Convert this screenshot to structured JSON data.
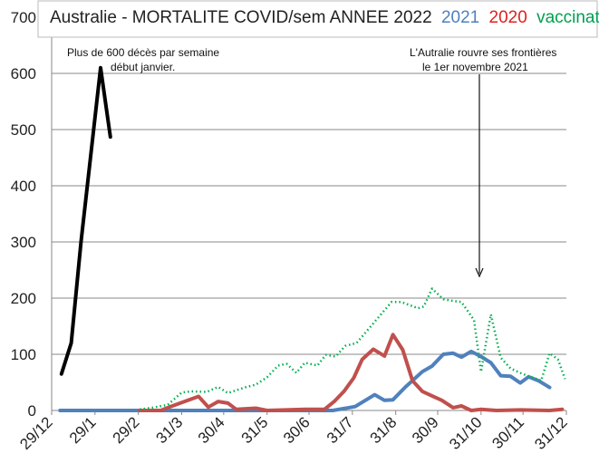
{
  "chart_data": {
    "type": "line",
    "title": {
      "main": "Australie - MORTALITE COVID/sem ANNEE 2022",
      "legend_2021": "2021",
      "legend_2020": "2020",
      "legend_vaccination": "vaccination"
    },
    "colors": {
      "y2022": "#000000",
      "y2021": "#4f81bd",
      "y2020": "#c0504d",
      "vaccination": "#00b050"
    },
    "xlabel": "",
    "ylabel": "",
    "x_unit": "days since 29/12",
    "xlim": [
      0,
      368
    ],
    "ylim": [
      0,
      700
    ],
    "yticks": [
      0,
      100,
      200,
      300,
      400,
      500,
      600,
      700
    ],
    "xticks": [
      {
        "day": 0,
        "label": "29/12"
      },
      {
        "day": 31,
        "label": "29/1"
      },
      {
        "day": 62,
        "label": "29/2"
      },
      {
        "day": 93,
        "label": "31/3"
      },
      {
        "day": 123,
        "label": "30/4"
      },
      {
        "day": 154,
        "label": "31/5"
      },
      {
        "day": 184,
        "label": "30/6"
      },
      {
        "day": 215,
        "label": "31/7"
      },
      {
        "day": 246,
        "label": "31/8"
      },
      {
        "day": 276,
        "label": "30/9"
      },
      {
        "day": 307,
        "label": "31/10"
      },
      {
        "day": 337,
        "label": "30/11"
      },
      {
        "day": 368,
        "label": "31/12"
      }
    ],
    "grid": true,
    "series": [
      {
        "name": "2022",
        "key": "y2022",
        "style": "solid-thick",
        "points": [
          [
            7,
            65
          ],
          [
            14,
            120
          ],
          [
            21,
            300
          ],
          [
            35,
            610
          ],
          [
            42,
            487
          ]
        ]
      },
      {
        "name": "2021",
        "key": "y2021",
        "style": "solid",
        "points": [
          [
            6,
            0
          ],
          [
            201,
            0
          ],
          [
            217,
            7
          ],
          [
            231,
            28
          ],
          [
            238,
            18
          ],
          [
            244,
            19
          ],
          [
            253,
            42
          ],
          [
            265,
            69
          ],
          [
            272,
            79
          ],
          [
            280,
            100
          ],
          [
            287,
            102
          ],
          [
            293,
            95
          ],
          [
            300,
            105
          ],
          [
            307,
            96
          ],
          [
            314,
            85
          ],
          [
            321,
            62
          ],
          [
            328,
            61
          ],
          [
            335,
            49
          ],
          [
            341,
            60
          ],
          [
            348,
            53
          ],
          [
            356,
            41
          ]
        ]
      },
      {
        "name": "2020",
        "key": "y2020",
        "style": "solid",
        "points": [
          [
            63,
            0
          ],
          [
            78,
            0
          ],
          [
            85,
            7
          ],
          [
            93,
            14
          ],
          [
            105,
            25
          ],
          [
            112,
            6
          ],
          [
            119,
            16
          ],
          [
            126,
            13
          ],
          [
            132,
            2
          ],
          [
            146,
            4
          ],
          [
            154,
            0
          ],
          [
            181,
            2
          ],
          [
            195,
            2
          ],
          [
            202,
            16
          ],
          [
            209,
            34
          ],
          [
            216,
            58
          ],
          [
            222,
            91
          ],
          [
            230,
            109
          ],
          [
            238,
            97
          ],
          [
            244,
            135
          ],
          [
            251,
            108
          ],
          [
            258,
            53
          ],
          [
            265,
            34
          ],
          [
            272,
            26
          ],
          [
            279,
            18
          ],
          [
            287,
            5
          ],
          [
            293,
            8
          ],
          [
            300,
            0
          ],
          [
            307,
            2
          ],
          [
            318,
            0
          ],
          [
            335,
            1
          ],
          [
            356,
            0
          ],
          [
            365,
            2
          ]
        ]
      },
      {
        "name": "vaccination",
        "key": "vaccination",
        "style": "dotted",
        "points": [
          [
            63,
            2
          ],
          [
            72,
            5
          ],
          [
            83,
            10
          ],
          [
            93,
            32
          ],
          [
            100,
            34
          ],
          [
            111,
            33
          ],
          [
            119,
            42
          ],
          [
            126,
            31
          ],
          [
            138,
            41
          ],
          [
            146,
            46
          ],
          [
            154,
            59
          ],
          [
            162,
            80
          ],
          [
            168,
            83
          ],
          [
            175,
            67
          ],
          [
            181,
            85
          ],
          [
            190,
            80
          ],
          [
            196,
            99
          ],
          [
            203,
            96
          ],
          [
            210,
            115
          ],
          [
            218,
            120
          ],
          [
            231,
            158
          ],
          [
            243,
            193
          ],
          [
            250,
            193
          ],
          [
            262,
            182
          ],
          [
            266,
            185
          ],
          [
            272,
            217
          ],
          [
            280,
            198
          ],
          [
            287,
            195
          ],
          [
            293,
            193
          ],
          [
            302,
            161
          ],
          [
            307,
            69
          ],
          [
            314,
            171
          ],
          [
            321,
            94
          ],
          [
            328,
            75
          ],
          [
            335,
            67
          ],
          [
            341,
            61
          ],
          [
            350,
            53
          ],
          [
            356,
            102
          ],
          [
            362,
            91
          ],
          [
            367,
            56
          ]
        ]
      }
    ],
    "annotations": {
      "peak_line1": "Plus de 600 décès par semaine",
      "peak_line2": "début janvier.",
      "border_line1": "L'Autralie rouvre ses frontières",
      "border_line2": "le 1er novembre 2021"
    }
  }
}
